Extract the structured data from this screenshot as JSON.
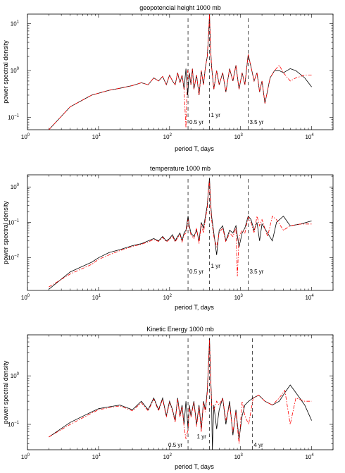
{
  "chart_data": [
    {
      "type": "line",
      "title": "geopotencial height 1000 mb",
      "xlabel": "period T,   days",
      "ylabel": "power spectral density",
      "xscale": "log",
      "yscale": "log",
      "xlim": [
        1,
        20000
      ],
      "ylim": [
        0.055,
        16
      ],
      "x_tick_labels": [
        {
          "value": 1,
          "base": "10",
          "exp": "0"
        },
        {
          "value": 10,
          "base": "10",
          "exp": "1"
        },
        {
          "value": 100,
          "base": "10",
          "exp": "2"
        },
        {
          "value": 1000,
          "base": "10",
          "exp": "3"
        },
        {
          "value": 10000,
          "base": "10",
          "exp": "4"
        }
      ],
      "y_tick_labels": [
        {
          "value": 0.1,
          "base": "10",
          "exp": "−1"
        },
        {
          "value": 1,
          "base": "10",
          "exp": "0"
        },
        {
          "value": 10,
          "base": "10",
          "exp": "1"
        }
      ],
      "annotations": [
        {
          "x": 182,
          "text": "0.5 yr"
        },
        {
          "x": 365,
          "text": "1 yr"
        },
        {
          "x": 1278,
          "text": "3.5 yr"
        }
      ],
      "series": [
        {
          "color": "#000000",
          "style": "solid",
          "x": [
            2,
            4,
            8,
            10,
            14,
            20,
            30,
            40,
            50,
            60,
            70,
            80,
            90,
            100,
            110,
            120,
            130,
            140,
            150,
            160,
            170,
            180,
            190,
            200,
            210,
            220,
            240,
            260,
            280,
            300,
            320,
            340,
            355,
            365,
            375,
            390,
            420,
            460,
            500,
            560,
            620,
            700,
            780,
            860,
            950,
            1050,
            1150,
            1280,
            1400,
            1550,
            1700,
            1850,
            2000,
            2200,
            2600,
            3000,
            3500,
            4000,
            5000,
            6000,
            8000,
            10000
          ],
          "y": [
            0.055,
            0.17,
            0.3,
            0.33,
            0.38,
            0.42,
            0.48,
            0.55,
            0.5,
            0.7,
            0.6,
            0.75,
            0.5,
            0.8,
            0.6,
            0.5,
            0.9,
            0.55,
            0.8,
            0.4,
            1.1,
            0.3,
            0.9,
            0.5,
            1.1,
            0.4,
            0.8,
            0.3,
            1.0,
            0.5,
            1.2,
            2.0,
            6.0,
            16.0,
            4.0,
            1.2,
            0.4,
            1.0,
            0.5,
            0.9,
            0.35,
            1.1,
            0.6,
            1.3,
            0.4,
            0.9,
            0.5,
            2.2,
            1.2,
            0.6,
            0.9,
            0.35,
            0.6,
            0.2,
            0.7,
            1.0,
            1.0,
            0.9,
            1.1,
            1.0,
            0.7,
            0.45
          ]
        },
        {
          "color": "#ff0000",
          "style": "dashdot",
          "x": [
            2,
            4,
            8,
            10,
            14,
            20,
            30,
            40,
            50,
            60,
            70,
            80,
            90,
            100,
            110,
            120,
            130,
            140,
            150,
            160,
            170,
            175,
            180,
            190,
            200,
            210,
            220,
            240,
            260,
            280,
            300,
            320,
            340,
            355,
            365,
            375,
            390,
            420,
            460,
            500,
            560,
            620,
            700,
            780,
            860,
            950,
            1050,
            1150,
            1280,
            1400,
            1550,
            1700,
            1850,
            2000,
            2200,
            2600,
            3000,
            3500,
            4000,
            5000,
            6000,
            8000,
            10000
          ],
          "y": [
            0.055,
            0.17,
            0.3,
            0.33,
            0.38,
            0.42,
            0.48,
            0.55,
            0.5,
            0.7,
            0.6,
            0.75,
            0.5,
            0.8,
            0.6,
            0.5,
            0.9,
            0.55,
            0.8,
            0.4,
            0.06,
            0.3,
            1.0,
            0.9,
            0.5,
            1.1,
            0.4,
            0.8,
            0.3,
            1.0,
            0.5,
            1.2,
            2.0,
            6.0,
            16.0,
            4.0,
            1.2,
            0.4,
            1.0,
            0.5,
            0.9,
            0.35,
            1.1,
            0.6,
            1.3,
            0.4,
            0.9,
            0.5,
            2.2,
            1.2,
            0.6,
            0.9,
            0.35,
            0.6,
            0.2,
            0.7,
            1.0,
            1.3,
            0.9,
            0.6,
            0.7,
            0.8,
            0.8
          ]
        }
      ]
    },
    {
      "type": "line",
      "title": "temperature 1000 mb",
      "xlabel": "period T,   days",
      "ylabel": "power spectral density",
      "xscale": "log",
      "yscale": "log",
      "xlim": [
        1,
        20000
      ],
      "ylim": [
        0.0012,
        2.2
      ],
      "x_tick_labels": [
        {
          "value": 1,
          "base": "10",
          "exp": "0"
        },
        {
          "value": 10,
          "base": "10",
          "exp": "1"
        },
        {
          "value": 100,
          "base": "10",
          "exp": "2"
        },
        {
          "value": 1000,
          "base": "10",
          "exp": "3"
        },
        {
          "value": 10000,
          "base": "10",
          "exp": "4"
        }
      ],
      "y_tick_labels": [
        {
          "value": 0.01,
          "base": "10",
          "exp": "−2"
        },
        {
          "value": 0.1,
          "base": "10",
          "exp": "−1"
        },
        {
          "value": 1,
          "base": "10",
          "exp": "0"
        }
      ],
      "annotations": [
        {
          "x": 182,
          "text": "0.5 yr"
        },
        {
          "x": 365,
          "text": "1 yr"
        },
        {
          "x": 1278,
          "text": "3.5 yr"
        }
      ],
      "series": [
        {
          "color": "#000000",
          "style": "solid",
          "x": [
            2,
            4,
            8,
            10,
            14,
            20,
            30,
            40,
            50,
            60,
            70,
            80,
            90,
            100,
            110,
            120,
            130,
            140,
            150,
            160,
            170,
            182,
            190,
            200,
            220,
            240,
            260,
            280,
            300,
            320,
            340,
            355,
            365,
            375,
            390,
            420,
            460,
            500,
            560,
            620,
            700,
            780,
            860,
            950,
            1050,
            1150,
            1280,
            1400,
            1550,
            1700,
            1850,
            2000,
            2400,
            2800,
            3200,
            4000,
            5000,
            7000,
            10000
          ],
          "y": [
            0.0013,
            0.004,
            0.0075,
            0.01,
            0.014,
            0.017,
            0.022,
            0.025,
            0.03,
            0.035,
            0.03,
            0.04,
            0.03,
            0.035,
            0.045,
            0.03,
            0.04,
            0.05,
            0.03,
            0.05,
            0.06,
            0.15,
            0.08,
            0.05,
            0.04,
            0.06,
            0.03,
            0.1,
            0.07,
            0.15,
            0.3,
            1.0,
            1.8,
            0.5,
            0.15,
            0.05,
            0.012,
            0.06,
            0.08,
            0.03,
            0.06,
            0.05,
            0.08,
            0.02,
            0.05,
            0.07,
            0.15,
            0.12,
            0.06,
            0.1,
            0.03,
            0.09,
            0.05,
            0.03,
            0.1,
            0.15,
            0.08,
            0.09,
            0.11
          ]
        },
        {
          "color": "#ff0000",
          "style": "dashdot",
          "x": [
            2,
            4,
            8,
            10,
            14,
            20,
            30,
            40,
            50,
            60,
            70,
            80,
            90,
            100,
            110,
            120,
            130,
            140,
            150,
            160,
            170,
            182,
            190,
            200,
            220,
            240,
            260,
            280,
            300,
            320,
            340,
            355,
            365,
            375,
            390,
            420,
            460,
            500,
            560,
            620,
            700,
            780,
            860,
            900,
            950,
            1050,
            1150,
            1280,
            1400,
            1550,
            1700,
            1850,
            2000,
            2400,
            2800,
            3200,
            4000,
            5000,
            7000,
            10000
          ],
          "y": [
            0.0015,
            0.0035,
            0.0065,
            0.009,
            0.012,
            0.016,
            0.021,
            0.024,
            0.028,
            0.033,
            0.029,
            0.038,
            0.028,
            0.033,
            0.04,
            0.028,
            0.037,
            0.045,
            0.028,
            0.045,
            0.05,
            0.12,
            0.07,
            0.045,
            0.035,
            0.07,
            0.025,
            0.09,
            0.05,
            0.13,
            0.25,
            0.9,
            1.5,
            0.4,
            0.12,
            0.04,
            0.02,
            0.05,
            0.07,
            0.028,
            0.05,
            0.04,
            0.07,
            0.003,
            0.04,
            0.06,
            0.05,
            0.14,
            0.1,
            0.05,
            0.15,
            0.08,
            0.12,
            0.04,
            0.15,
            0.12,
            0.06,
            0.08,
            0.09,
            0.09
          ]
        }
      ]
    },
    {
      "type": "line",
      "title": "Kinetic Energy 1000 mb",
      "xlabel": "period T,   days",
      "ylabel": "power spectral density",
      "xscale": "log",
      "yscale": "log",
      "xlim": [
        1,
        20000
      ],
      "ylim": [
        0.03,
        7
      ],
      "x_tick_labels": [
        {
          "value": 1,
          "base": "10",
          "exp": "0"
        },
        {
          "value": 10,
          "base": "10",
          "exp": "1"
        },
        {
          "value": 100,
          "base": "10",
          "exp": "2"
        },
        {
          "value": 1000,
          "base": "10",
          "exp": "3"
        },
        {
          "value": 10000,
          "base": "10",
          "exp": "4"
        }
      ],
      "y_tick_labels": [
        {
          "value": 0.1,
          "base": "10",
          "exp": "−1"
        },
        {
          "value": 1,
          "base": "10",
          "exp": "0"
        }
      ],
      "annotations": [
        {
          "x": 182,
          "text": "0.5 yr"
        },
        {
          "x": 365,
          "text": "1 yr"
        },
        {
          "x": 1461,
          "text": "4 yr"
        }
      ],
      "series": [
        {
          "color": "#000000",
          "style": "solid",
          "x": [
            2,
            4,
            8,
            10,
            14,
            20,
            30,
            40,
            50,
            60,
            70,
            80,
            90,
            100,
            110,
            120,
            130,
            140,
            150,
            160,
            170,
            182,
            190,
            200,
            220,
            240,
            260,
            280,
            300,
            320,
            340,
            355,
            365,
            375,
            390,
            400,
            420,
            460,
            500,
            560,
            620,
            700,
            780,
            860,
            950,
            1050,
            1150,
            1300,
            1500,
            1800,
            2200,
            2800,
            3500,
            4200,
            5000,
            6000,
            8000,
            10000
          ],
          "y": [
            0.055,
            0.11,
            0.18,
            0.21,
            0.23,
            0.25,
            0.2,
            0.3,
            0.2,
            0.35,
            0.2,
            0.35,
            0.15,
            0.3,
            0.2,
            0.12,
            0.35,
            0.15,
            0.25,
            0.1,
            0.3,
            0.08,
            0.25,
            0.15,
            0.3,
            0.1,
            0.25,
            0.08,
            0.3,
            0.2,
            0.5,
            2.0,
            6.0,
            1.5,
            0.3,
            0.03,
            0.25,
            0.08,
            0.2,
            0.35,
            0.1,
            0.3,
            0.06,
            0.2,
            0.05,
            0.15,
            0.25,
            0.3,
            0.35,
            0.4,
            0.3,
            0.25,
            0.3,
            0.45,
            0.65,
            0.45,
            0.25,
            0.12
          ]
        },
        {
          "color": "#ff0000",
          "style": "dashdot",
          "x": [
            2,
            4,
            8,
            10,
            14,
            20,
            30,
            40,
            50,
            60,
            70,
            80,
            90,
            100,
            110,
            120,
            130,
            140,
            150,
            160,
            170,
            182,
            190,
            200,
            220,
            240,
            260,
            280,
            300,
            320,
            340,
            355,
            365,
            375,
            390,
            420,
            460,
            500,
            560,
            620,
            700,
            780,
            860,
            950,
            1050,
            1150,
            1300,
            1500,
            1800,
            2200,
            2800,
            3500,
            4200,
            5000,
            6000,
            8000,
            10000
          ],
          "y": [
            0.055,
            0.1,
            0.17,
            0.2,
            0.22,
            0.24,
            0.19,
            0.28,
            0.19,
            0.33,
            0.19,
            0.33,
            0.14,
            0.28,
            0.19,
            0.11,
            0.33,
            0.14,
            0.23,
            0.09,
            0.05,
            0.08,
            0.23,
            0.14,
            0.28,
            0.09,
            0.23,
            0.07,
            0.28,
            0.18,
            0.45,
            1.8,
            5.5,
            1.3,
            0.25,
            0.2,
            0.3,
            0.25,
            0.35,
            0.12,
            0.25,
            0.07,
            0.18,
            0.04,
            0.3,
            0.15,
            0.1,
            0.35,
            0.4,
            0.3,
            0.25,
            0.35,
            0.5,
            0.1,
            0.35,
            0.3,
            0.3
          ]
        }
      ]
    }
  ]
}
